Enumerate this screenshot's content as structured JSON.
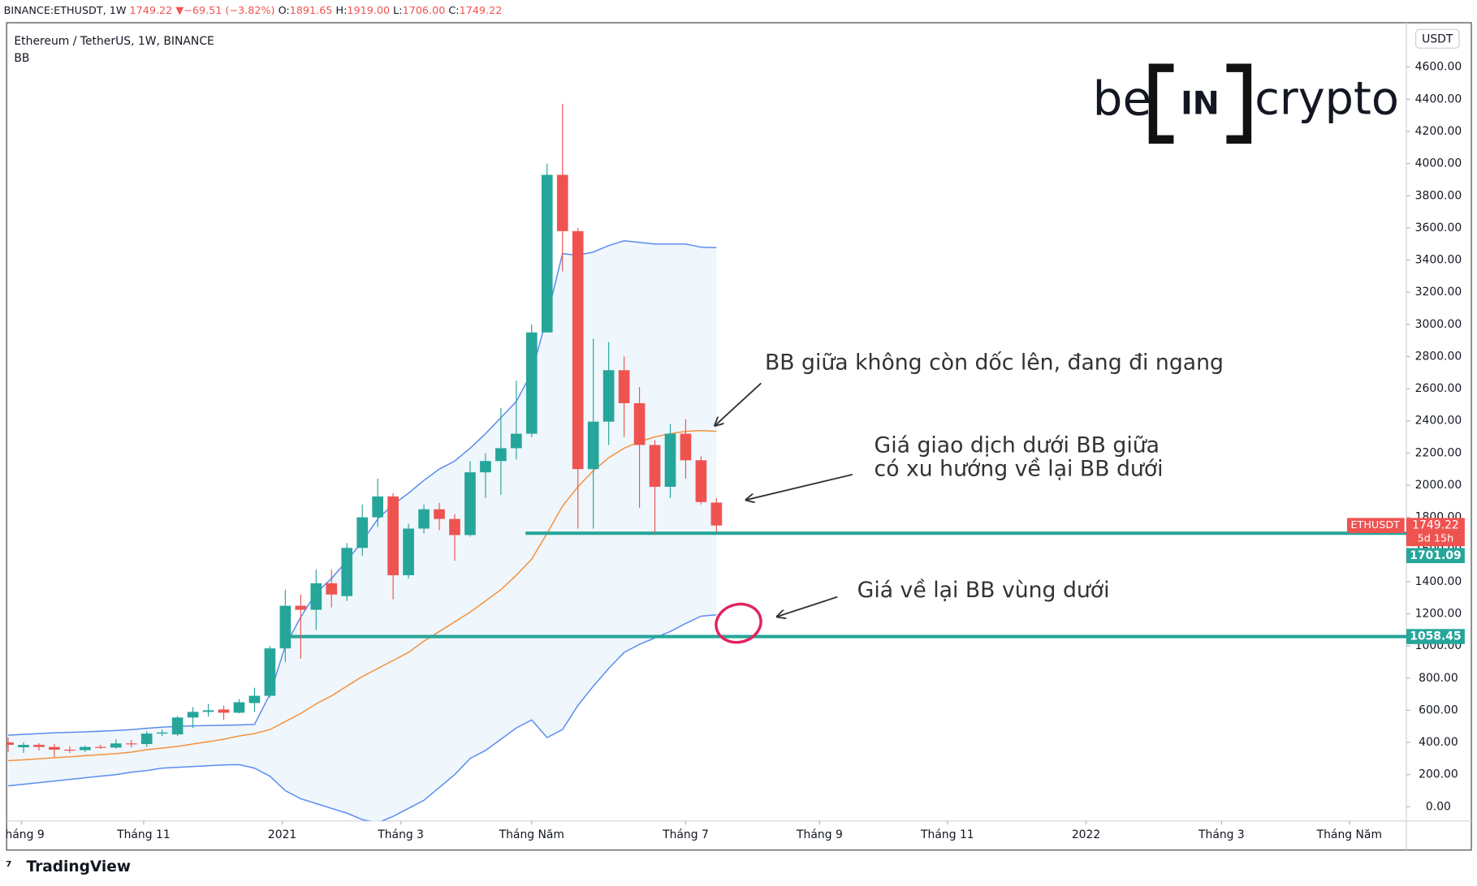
{
  "header": {
    "symbol": "BINANCE:ETHUSDT, 1W",
    "price": "1749.22",
    "arrow": "▼",
    "change": "−69.51 (−3.82%)",
    "ohlc": [
      {
        "key": "O:",
        "value": "1891.65"
      },
      {
        "key": "H:",
        "value": "1919.00"
      },
      {
        "key": "L:",
        "value": "1706.00"
      },
      {
        "key": "C:",
        "value": "1749.22"
      }
    ]
  },
  "logo": {
    "left": "be",
    "middle": "IN",
    "right": "crypto"
  },
  "footer": "TradingView",
  "chart_data": {
    "type": "candlestick",
    "title": "Ethereum / TetherUS, 1W, BINANCE",
    "indicator": "BB",
    "currency": "USDT",
    "symbol_label": "ETHUSDT",
    "countdown": "5d 15h",
    "up_color": "#26a69a",
    "down_color": "#ef5350",
    "x": [
      0,
      1,
      2,
      3,
      4,
      5,
      6,
      7,
      8,
      9,
      10,
      11,
      12,
      13,
      14,
      15,
      16,
      17,
      18,
      19,
      20,
      21,
      22,
      23,
      24,
      25,
      26,
      27,
      28,
      29,
      30,
      31,
      32,
      33,
      34,
      35,
      36,
      37,
      38,
      39,
      40,
      41,
      42,
      43,
      44,
      45,
      46
    ],
    "open": [
      400,
      370,
      385,
      372,
      355,
      352,
      372,
      368,
      394,
      390,
      455,
      450,
      555,
      590,
      605,
      585,
      645,
      690,
      985,
      1250,
      1225,
      1390,
      1310,
      1610,
      1800,
      1930,
      1440,
      1730,
      1850,
      1790,
      1690,
      2080,
      2150,
      2230,
      2320,
      2950,
      3930,
      3580,
      2100,
      2395,
      2715,
      2510,
      2250,
      1990,
      2320,
      2155,
      1891.65
    ],
    "high": [
      430,
      400,
      395,
      390,
      375,
      380,
      385,
      420,
      415,
      470,
      480,
      565,
      620,
      640,
      630,
      670,
      740,
      1000,
      1350,
      1320,
      1475,
      1475,
      1640,
      1880,
      2040,
      1950,
      1760,
      1880,
      1890,
      1820,
      2150,
      2200,
      2480,
      2650,
      3000,
      4000,
      4372,
      3600,
      2910,
      2890,
      2800,
      2610,
      2280,
      2380,
      2410,
      2180,
      1919
    ],
    "low": [
      340,
      335,
      350,
      310,
      335,
      340,
      360,
      362,
      370,
      372,
      440,
      440,
      490,
      560,
      540,
      580,
      590,
      680,
      900,
      920,
      1100,
      1240,
      1280,
      1560,
      1740,
      1290,
      1420,
      1700,
      1720,
      1530,
      1680,
      1920,
      1940,
      2160,
      2300,
      2950,
      3330,
      1730,
      1730,
      2250,
      2300,
      1860,
      1700,
      1920,
      2040,
      1880,
      1706
    ],
    "close": [
      385,
      385,
      372,
      355,
      352,
      372,
      368,
      394,
      390,
      455,
      462,
      555,
      590,
      600,
      585,
      650,
      690,
      985,
      1250,
      1225,
      1390,
      1320,
      1610,
      1800,
      1930,
      1440,
      1730,
      1850,
      1790,
      1690,
      2080,
      2150,
      2230,
      2320,
      2950,
      3930,
      3580,
      2100,
      2395,
      2715,
      2510,
      2250,
      1990,
      2320,
      2155,
      1895,
      1749.22
    ],
    "bb": {
      "upper_color": "#5b8def",
      "middle_color": "#f5923e",
      "fill_color": "#e8f2fb",
      "upper": [
        445,
        450,
        455,
        460,
        463,
        466,
        470,
        474,
        480,
        488,
        495,
        500,
        503,
        505,
        507,
        509,
        512,
        700,
        1000,
        1180,
        1330,
        1420,
        1530,
        1650,
        1790,
        1880,
        1950,
        2030,
        2100,
        2150,
        2230,
        2320,
        2420,
        2520,
        2700,
        3050,
        3440,
        3430,
        3450,
        3490,
        3520,
        3510,
        3500,
        3500,
        3500,
        3480,
        3477
      ],
      "middle": [
        287,
        292,
        298,
        305,
        311,
        318,
        324,
        330,
        340,
        355,
        365,
        375,
        390,
        405,
        420,
        440,
        455,
        480,
        530,
        580,
        640,
        690,
        750,
        810,
        860,
        910,
        960,
        1030,
        1090,
        1150,
        1210,
        1280,
        1350,
        1440,
        1540,
        1700,
        1870,
        1990,
        2090,
        2170,
        2230,
        2270,
        2300,
        2320,
        2335,
        2340,
        2335
      ],
      "lower": [
        130,
        140,
        150,
        160,
        170,
        180,
        190,
        200,
        215,
        225,
        240,
        245,
        250,
        255,
        260,
        262,
        240,
        190,
        100,
        50,
        20,
        -10,
        -40,
        -80,
        -100,
        -60,
        -10,
        40,
        120,
        200,
        300,
        350,
        420,
        490,
        540,
        430,
        480,
        630,
        750,
        860,
        960,
        1010,
        1050,
        1090,
        1140,
        1185,
        1194
      ]
    },
    "levels": [
      {
        "value": 1701.09,
        "x_start": 33.6,
        "color": "#26a69a"
      },
      {
        "value": 1058.45,
        "x_start": 18.2,
        "color": "#26a69a"
      }
    ],
    "xlim": [
      -0.1,
      90.8
    ],
    "ylim": [
      -88,
      4876
    ],
    "xticks": [
      {
        "value": 0.86,
        "label": "Tháng 9"
      },
      {
        "value": 8.8,
        "label": "Tháng 11"
      },
      {
        "value": 17.8,
        "label": "2021"
      },
      {
        "value": 25.5,
        "label": "Tháng 3"
      },
      {
        "value": 34.0,
        "label": "Tháng Năm"
      },
      {
        "value": 44.0,
        "label": "Tháng 7"
      },
      {
        "value": 52.7,
        "label": "Tháng 9"
      },
      {
        "value": 61.0,
        "label": "Tháng 11"
      },
      {
        "value": 70.0,
        "label": "2022"
      },
      {
        "value": 78.8,
        "label": "Tháng 3"
      },
      {
        "value": 87.1,
        "label": "Tháng Năm"
      }
    ],
    "yticks": [
      {
        "value": 0,
        "label": "0.00"
      },
      {
        "value": 200,
        "label": "200.00"
      },
      {
        "value": 400,
        "label": "400.00"
      },
      {
        "value": 600,
        "label": "600.00"
      },
      {
        "value": 800,
        "label": "800.00"
      },
      {
        "value": 1000,
        "label": "1000.00"
      },
      {
        "value": 1200,
        "label": "1200.00"
      },
      {
        "value": 1400,
        "label": "1400.00"
      },
      {
        "value": 1600,
        "label": "1600.00"
      },
      {
        "value": 1800,
        "label": "1800.00"
      },
      {
        "value": 2000,
        "label": "2000.00"
      },
      {
        "value": 2200,
        "label": "2200.00"
      },
      {
        "value": 2400,
        "label": "2400.00"
      },
      {
        "value": 2600,
        "label": "2600.00"
      },
      {
        "value": 2800,
        "label": "2800.00"
      },
      {
        "value": 3000,
        "label": "3000.00"
      },
      {
        "value": 3200,
        "label": "3200.00"
      },
      {
        "value": 3400,
        "label": "3400.00"
      },
      {
        "value": 3600,
        "label": "3600.00"
      },
      {
        "value": 3800,
        "label": "3800.00"
      },
      {
        "value": 4000,
        "label": "4000.00"
      },
      {
        "value": 4200,
        "label": "4200.00"
      },
      {
        "value": 4400,
        "label": "4400.00"
      },
      {
        "value": 4600,
        "label": "4600.00"
      }
    ],
    "annotations": [
      "BB giữa không còn dốc lên, đang đi ngang",
      "Giá giao dịch dưới BB giữa",
      "có xu hướng về lại BB dưới",
      "Giá về lại BB vùng dưới"
    ]
  }
}
